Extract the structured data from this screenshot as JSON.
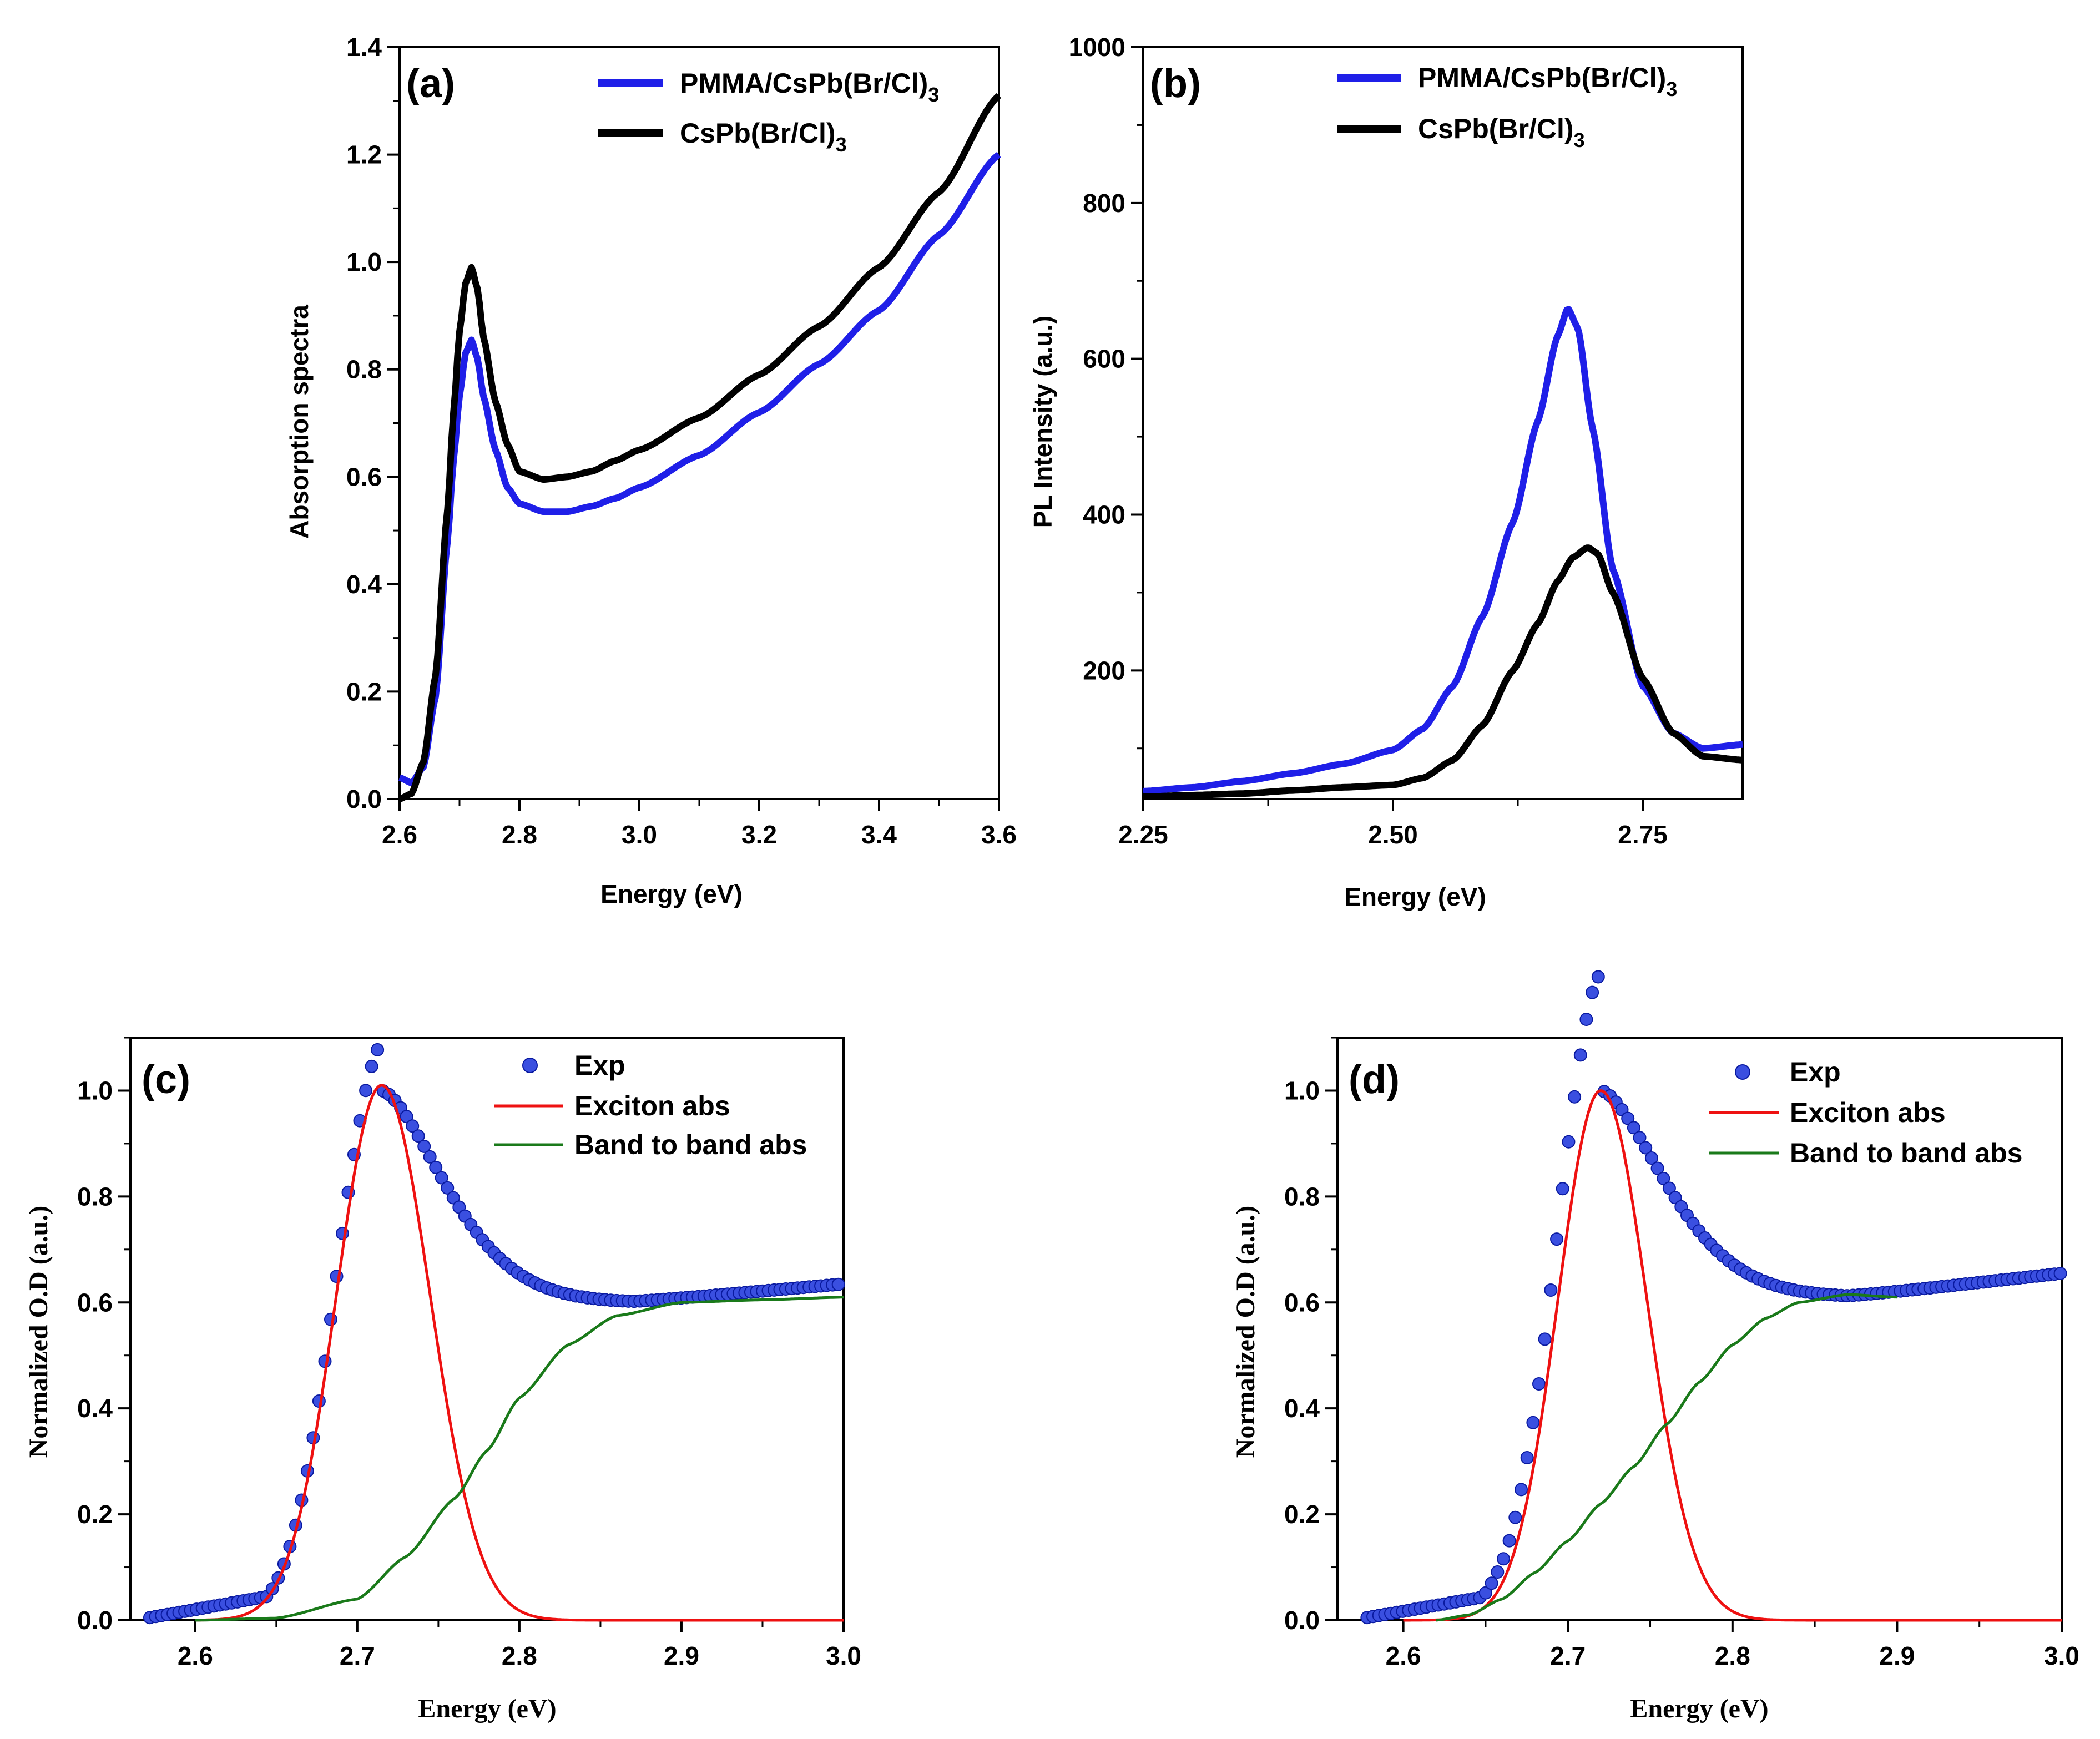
{
  "colors": {
    "blue": "#1f1fe8",
    "black": "#000000",
    "red": "#ee1111",
    "green": "#1a7a1a",
    "marker": "#3a4fe0"
  },
  "chart_data": [
    {
      "id": "a",
      "type": "line",
      "panel_label": "(a)",
      "xlabel": "Energy (eV)",
      "ylabel": "Absorption spectra",
      "xlim": [
        2.6,
        3.6
      ],
      "ylim": [
        0.0,
        1.4
      ],
      "xticks": [
        "2.6",
        "2.8",
        "3.0",
        "3.2",
        "3.4",
        "3.6"
      ],
      "yticks": [
        "0.0",
        "0.2",
        "0.4",
        "0.6",
        "0.8",
        "1.0",
        "1.2",
        "1.4"
      ],
      "legend": [
        "PMMA/CsPb(Br/Cl)3",
        "CsPb(Br/Cl)3"
      ],
      "series": [
        {
          "name": "PMMA/CsPb(Br/Cl)3",
          "color": "blue",
          "x": [
            2.6,
            2.62,
            2.64,
            2.66,
            2.68,
            2.69,
            2.7,
            2.71,
            2.72,
            2.73,
            2.74,
            2.76,
            2.78,
            2.8,
            2.84,
            2.88,
            2.92,
            2.96,
            3.0,
            3.1,
            3.2,
            3.3,
            3.4,
            3.5,
            3.6
          ],
          "y": [
            0.04,
            0.03,
            0.06,
            0.19,
            0.48,
            0.63,
            0.75,
            0.83,
            0.855,
            0.82,
            0.75,
            0.65,
            0.58,
            0.55,
            0.535,
            0.535,
            0.545,
            0.56,
            0.58,
            0.64,
            0.72,
            0.81,
            0.91,
            1.05,
            1.2
          ]
        },
        {
          "name": "CsPb(Br/Cl)3",
          "color": "black",
          "x": [
            2.6,
            2.62,
            2.64,
            2.66,
            2.68,
            2.69,
            2.7,
            2.71,
            2.72,
            2.73,
            2.74,
            2.76,
            2.78,
            2.8,
            2.84,
            2.88,
            2.92,
            2.96,
            3.0,
            3.1,
            3.2,
            3.3,
            3.4,
            3.5,
            3.6
          ],
          "y": [
            0.0,
            0.01,
            0.07,
            0.23,
            0.54,
            0.72,
            0.87,
            0.96,
            0.99,
            0.95,
            0.86,
            0.74,
            0.66,
            0.61,
            0.595,
            0.6,
            0.61,
            0.63,
            0.65,
            0.71,
            0.79,
            0.88,
            0.99,
            1.13,
            1.31
          ]
        }
      ]
    },
    {
      "id": "b",
      "type": "line",
      "panel_label": "(b)",
      "xlabel": "Energy (eV)",
      "ylabel": "PL Intensity (a.u.)",
      "xlim": [
        2.25,
        2.85
      ],
      "ylim": [
        35,
        1000
      ],
      "xticks": [
        "2.25",
        "2.50",
        "2.75"
      ],
      "yticks": [
        "200",
        "400",
        "600",
        "800",
        "1000"
      ],
      "legend": [
        "PMMA/CsPb(Br/Cl)3",
        "CsPb(Br/Cl)3"
      ],
      "series": [
        {
          "name": "PMMA/CsPb(Br/Cl)3",
          "color": "blue",
          "x": [
            2.25,
            2.3,
            2.35,
            2.4,
            2.45,
            2.5,
            2.53,
            2.56,
            2.59,
            2.62,
            2.645,
            2.665,
            2.675,
            2.685,
            2.7,
            2.72,
            2.75,
            2.78,
            2.81,
            2.85
          ],
          "y": [
            45,
            50,
            58,
            68,
            80,
            98,
            125,
            180,
            270,
            390,
            520,
            630,
            665,
            640,
            510,
            330,
            180,
            120,
            100,
            105
          ]
        },
        {
          "name": "CsPb(Br/Cl)3",
          "color": "black",
          "x": [
            2.25,
            2.3,
            2.35,
            2.4,
            2.45,
            2.5,
            2.53,
            2.56,
            2.59,
            2.62,
            2.645,
            2.665,
            2.68,
            2.695,
            2.705,
            2.72,
            2.75,
            2.78,
            2.81,
            2.85
          ],
          "y": [
            38,
            40,
            42,
            46,
            50,
            53,
            62,
            85,
            130,
            200,
            260,
            315,
            345,
            358,
            350,
            300,
            190,
            120,
            90,
            85
          ]
        }
      ]
    },
    {
      "id": "c",
      "type": "scatter",
      "panel_label": "(c)",
      "xlabel": "Energy (eV)",
      "ylabel": "Normalized O.D (a.u.)",
      "xlim": [
        2.56,
        3.0
      ],
      "ylim": [
        0.0,
        1.1
      ],
      "xticks": [
        "2.6",
        "2.7",
        "2.8",
        "2.9",
        "3.0"
      ],
      "yticks": [
        "0.0",
        "0.2",
        "0.4",
        "0.6",
        "0.8",
        "1.0"
      ],
      "legend": [
        "Exp",
        "Exciton abs",
        "Band to band abs"
      ],
      "exp": {
        "x0": 2.572,
        "x1": 3.0,
        "peak_x": 2.715,
        "base": 0.6,
        "end": 0.635
      },
      "exciton": {
        "center": 2.715,
        "sigma_left": 0.028,
        "sigma_right": 0.03,
        "amplitude": 1.01
      },
      "band_to_band": {
        "x": [
          2.6,
          2.65,
          2.7,
          2.73,
          2.76,
          2.78,
          2.8,
          2.83,
          2.86,
          2.9,
          2.95,
          3.0
        ],
        "y": [
          0.0,
          0.004,
          0.04,
          0.12,
          0.23,
          0.32,
          0.42,
          0.52,
          0.575,
          0.6,
          0.605,
          0.61
        ]
      }
    },
    {
      "id": "d",
      "type": "scatter",
      "panel_label": "(d)",
      "xlabel": "Energy (eV)",
      "ylabel": "Normalized O.D (a.u.)",
      "xlim": [
        2.56,
        3.0
      ],
      "ylim": [
        0.0,
        1.1
      ],
      "xticks": [
        "2.6",
        "2.7",
        "2.8",
        "2.9",
        "3.0"
      ],
      "yticks": [
        "0.0",
        "0.2",
        "0.4",
        "0.6",
        "0.8",
        "1.0"
      ],
      "legend": [
        "Exp",
        "Exciton abs",
        "Band to band abs"
      ],
      "exp": {
        "x0": 2.578,
        "x1": 3.0,
        "peak_x": 2.72,
        "base": 0.61,
        "end": 0.655
      },
      "exciton": {
        "center": 2.72,
        "sigma_left": 0.026,
        "sigma_right": 0.028,
        "amplitude": 1.0
      },
      "band_to_band": {
        "x": [
          2.62,
          2.64,
          2.66,
          2.68,
          2.7,
          2.72,
          2.74,
          2.76,
          2.78,
          2.8,
          2.82,
          2.84,
          2.87,
          2.9
        ],
        "y": [
          0.0,
          0.01,
          0.04,
          0.09,
          0.15,
          0.22,
          0.29,
          0.37,
          0.45,
          0.52,
          0.57,
          0.6,
          0.615,
          0.61
        ]
      }
    }
  ]
}
